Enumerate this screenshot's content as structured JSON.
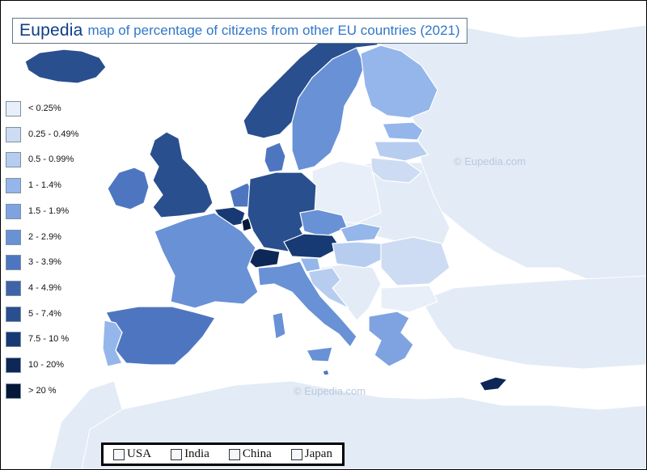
{
  "title": {
    "brand": "Eupedia",
    "text": "map of percentage of citizens from other EU countries (2021)"
  },
  "colors": {
    "sea": "#ffffff",
    "land_no_data": "#e3ebf6",
    "border": "#ffffff"
  },
  "legend": [
    {
      "label": "< 0.25%",
      "color": "#e8eff8"
    },
    {
      "label": "0.25 - 0.49%",
      "color": "#cddcf2"
    },
    {
      "label": "0.5 - 0.99%",
      "color": "#b6cdef"
    },
    {
      "label": "1 - 1.4%",
      "color": "#95b6ea"
    },
    {
      "label": "1.5 - 1.9%",
      "color": "#7fa3e0"
    },
    {
      "label": "2 - 2.9%",
      "color": "#6891d6"
    },
    {
      "label": "3 - 3.9%",
      "color": "#4e76c0"
    },
    {
      "label": "4 - 4.9%",
      "color": "#3f63a8"
    },
    {
      "label": "5 - 7.4%",
      "color": "#2a4f8f"
    },
    {
      "label": "7.5 - 10 %",
      "color": "#183a74"
    },
    {
      "label": "10 - 20%",
      "color": "#0d2757"
    },
    {
      "label": "> 20 %",
      "color": "#051838"
    }
  ],
  "regions": [
    {
      "name": "iceland",
      "class": "5 - 7.4%"
    },
    {
      "name": "ireland",
      "class": "3 - 3.9%"
    },
    {
      "name": "united-kingdom",
      "class": "5 - 7.4%"
    },
    {
      "name": "norway",
      "class": "5 - 7.4%"
    },
    {
      "name": "sweden",
      "class": "2 - 2.9%"
    },
    {
      "name": "finland",
      "class": "1 - 1.4%"
    },
    {
      "name": "denmark",
      "class": "3 - 3.9%"
    },
    {
      "name": "estonia",
      "class": "1 - 1.4%"
    },
    {
      "name": "latvia",
      "class": "0.5 - 0.99%"
    },
    {
      "name": "lithuania",
      "class": "0.25 - 0.49%"
    },
    {
      "name": "netherlands",
      "class": "3 - 3.9%"
    },
    {
      "name": "belgium",
      "class": "7.5 - 10 %"
    },
    {
      "name": "luxembourg",
      "class": "> 20 %"
    },
    {
      "name": "germany",
      "class": "5 - 7.4%"
    },
    {
      "name": "poland",
      "class": "< 0.25%"
    },
    {
      "name": "czechia",
      "class": "2 - 2.9%"
    },
    {
      "name": "slovakia",
      "class": "1 - 1.4%"
    },
    {
      "name": "austria",
      "class": "7.5 - 10 %"
    },
    {
      "name": "switzerland",
      "class": "10 - 20%"
    },
    {
      "name": "france",
      "class": "2 - 2.9%"
    },
    {
      "name": "spain",
      "class": "3 - 3.9%"
    },
    {
      "name": "portugal",
      "class": "1 - 1.4%"
    },
    {
      "name": "italy",
      "class": "2 - 2.9%"
    },
    {
      "name": "slovenia",
      "class": "1 - 1.4%"
    },
    {
      "name": "croatia",
      "class": "0.5 - 0.99%"
    },
    {
      "name": "hungary",
      "class": "0.5 - 0.99%"
    },
    {
      "name": "romania",
      "class": "0.25 - 0.49%"
    },
    {
      "name": "bulgaria",
      "class": "< 0.25%"
    },
    {
      "name": "greece",
      "class": "1.5 - 1.9%"
    },
    {
      "name": "cyprus",
      "class": "10 - 20%"
    },
    {
      "name": "malta",
      "class": "3 - 3.9%"
    }
  ],
  "watermarks": [
    "©  Eupedia.com",
    "©  Eupedia.com"
  ],
  "tabs": [
    {
      "label": "USA"
    },
    {
      "label": "India"
    },
    {
      "label": "China"
    },
    {
      "label": "Japan"
    }
  ]
}
